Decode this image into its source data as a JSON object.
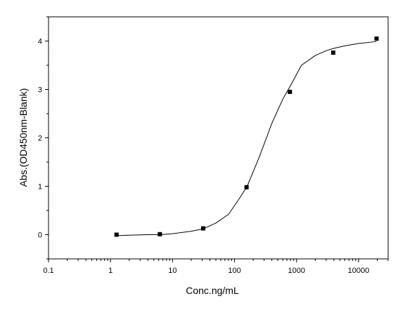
{
  "chart_data": {
    "type": "scatter",
    "title": "",
    "xlabel": "Conc.ng/mL",
    "ylabel": "Abs.(OD450nm-Blank)",
    "xscale": "log",
    "xlim": [
      0.1,
      30000
    ],
    "ylim": [
      -0.5,
      4.5
    ],
    "xticks": [
      {
        "value": 0.1,
        "label": "0.1"
      },
      {
        "value": 1,
        "label": "1"
      },
      {
        "value": 10,
        "label": "10"
      },
      {
        "value": 100,
        "label": "100"
      },
      {
        "value": 1000,
        "label": "1000"
      },
      {
        "value": 10000,
        "label": "10000"
      }
    ],
    "yticks": [
      {
        "value": 0,
        "label": "0"
      },
      {
        "value": 1,
        "label": "1"
      },
      {
        "value": 2,
        "label": "2"
      },
      {
        "value": 3,
        "label": "3"
      },
      {
        "value": 4,
        "label": "4"
      }
    ],
    "grid": false,
    "legend": "none",
    "series": [
      {
        "style": "markers",
        "marker": "square",
        "color": "#000000",
        "x": [
          1.25,
          6.25,
          31.25,
          156.25,
          781.25,
          3906.25,
          19531.25
        ],
        "y": [
          0.0,
          0.01,
          0.13,
          0.98,
          2.95,
          3.76,
          4.05
        ]
      },
      {
        "style": "fitted-curve",
        "color": "#000000",
        "x": [
          1.25,
          2,
          4,
          6.25,
          10,
          20,
          31.25,
          50,
          80,
          120,
          160,
          250,
          400,
          600,
          800,
          1200,
          2000,
          3000,
          4000,
          6000,
          10000,
          19531.25
        ],
        "y": [
          -0.02,
          -0.01,
          0.0,
          0.0,
          0.02,
          0.07,
          0.12,
          0.24,
          0.42,
          0.75,
          1.0,
          1.6,
          2.3,
          2.8,
          3.08,
          3.5,
          3.7,
          3.8,
          3.85,
          3.9,
          3.95,
          3.99
        ]
      }
    ]
  }
}
